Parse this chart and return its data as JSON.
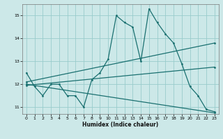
{
  "xlabel": "Humidex (Indice chaleur)",
  "ylabel": "",
  "bg_color": "#cce8e8",
  "grid_color": "#99cccc",
  "line_color": "#1a7070",
  "xlim": [
    -0.5,
    23.5
  ],
  "ylim": [
    10.7,
    15.5
  ],
  "xticks": [
    0,
    1,
    2,
    3,
    4,
    5,
    6,
    7,
    8,
    9,
    10,
    11,
    12,
    13,
    14,
    15,
    16,
    17,
    18,
    19,
    20,
    21,
    22,
    23
  ],
  "yticks": [
    11,
    12,
    13,
    14,
    15
  ],
  "series1_x": [
    0,
    1,
    2,
    3,
    4,
    5,
    6,
    7,
    8,
    9,
    10,
    11,
    12,
    13,
    14,
    15,
    16,
    17,
    18,
    19,
    20,
    21,
    22,
    23
  ],
  "series1_y": [
    12.5,
    11.9,
    11.5,
    12.0,
    12.0,
    11.5,
    11.5,
    11.0,
    12.2,
    12.5,
    13.1,
    15.0,
    14.7,
    14.5,
    13.0,
    15.3,
    14.7,
    14.2,
    13.8,
    12.9,
    11.9,
    11.5,
    10.9,
    10.8
  ],
  "series2_x": [
    0,
    23
  ],
  "series2_y": [
    12.1,
    13.8
  ],
  "series3_x": [
    0,
    23
  ],
  "series3_y": [
    11.95,
    12.75
  ],
  "series4_x": [
    0,
    23
  ],
  "series4_y": [
    12.0,
    10.75
  ]
}
